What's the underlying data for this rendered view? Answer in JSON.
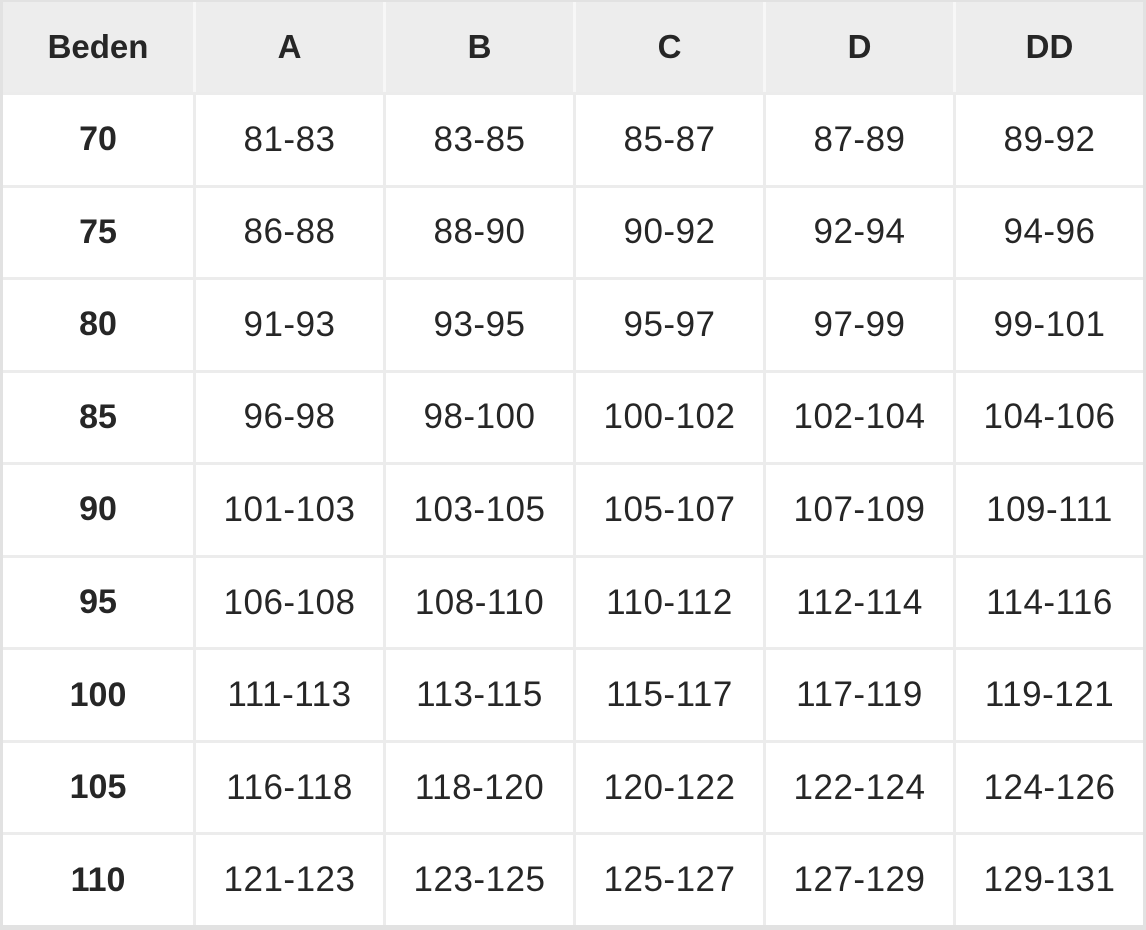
{
  "chart_data": {
    "type": "table",
    "columns": [
      "Beden",
      "A",
      "B",
      "C",
      "D",
      "DD"
    ],
    "rows": [
      [
        "70",
        "81-83",
        "83-85",
        "85-87",
        "87-89",
        "89-92"
      ],
      [
        "75",
        "86-88",
        "88-90",
        "90-92",
        "92-94",
        "94-96"
      ],
      [
        "80",
        "91-93",
        "93-95",
        "95-97",
        "97-99",
        "99-101"
      ],
      [
        "85",
        "96-98",
        "98-100",
        "100-102",
        "102-104",
        "104-106"
      ],
      [
        "90",
        "101-103",
        "103-105",
        "105-107",
        "107-109",
        "109-111"
      ],
      [
        "95",
        "106-108",
        "108-110",
        "110-112",
        "112-114",
        "114-116"
      ],
      [
        "100",
        "111-113",
        "113-115",
        "115-117",
        "117-119",
        "119-121"
      ],
      [
        "105",
        "116-118",
        "118-120",
        "120-122",
        "122-124",
        "124-126"
      ],
      [
        "110",
        "121-123",
        "123-125",
        "125-127",
        "127-129",
        "129-131"
      ]
    ],
    "layout": {
      "legend": "none",
      "grid": "on"
    }
  },
  "colors": {
    "header_bg": "#ededed",
    "cell_bg": "#ffffff",
    "separator": "#ececec",
    "header_separator": "#f7f7f7",
    "frame": "#e2e2e2",
    "text": "#262626"
  }
}
